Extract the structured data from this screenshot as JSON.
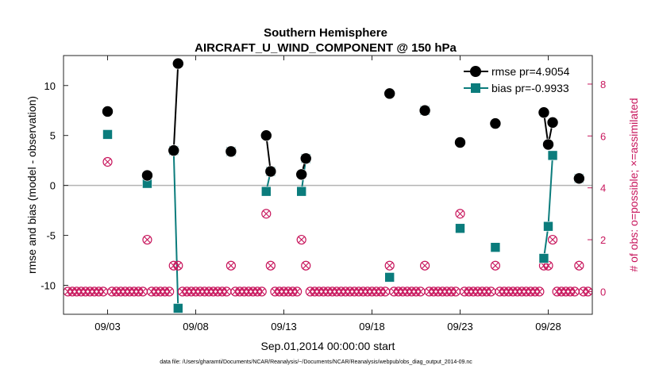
{
  "chart_data": {
    "type": "line",
    "title": "Southern Hemisphere",
    "subtitle": "AIRCRAFT_U_WIND_COMPONENT @ 150 hPa",
    "xlabel": "Sep.01,2014 00:00:00 start",
    "ylabel": "rmse and bias (model - observation)",
    "ylabel_right": "# of obs: o=possible; ×=assimilated",
    "footnote": "data file: /Users/gharamti/Documents/NCAR/Reanalysis/~/Documents/NCAR/Reanalysis/webpub/obs_diag_output_2014-09.nc",
    "xlim": [
      0.5,
      30.5
    ],
    "ylim": [
      -12.9,
      13
    ],
    "ylim_right": [
      -0.875,
      9.1
    ],
    "x_ticks": [
      3,
      8,
      13,
      18,
      23,
      28
    ],
    "x_tick_labels": [
      "09/03",
      "09/08",
      "09/13",
      "09/18",
      "09/23",
      "09/28"
    ],
    "y_ticks": [
      -10,
      -5,
      0,
      5,
      10
    ],
    "y_tick_labels": [
      "-10",
      "-5",
      "0",
      "5",
      "10"
    ],
    "y_right_ticks": [
      0,
      2,
      4,
      6,
      8
    ],
    "y_right_tick_labels": [
      "0",
      "2",
      "4",
      "6",
      "8"
    ],
    "colors": {
      "rmse": "#000000",
      "bias": "#0b7c7c",
      "obs": "#c8175d",
      "zero_line": "#b3b3b3",
      "axes": "#262626"
    },
    "series": [
      {
        "name": "rmse pr=4.9054",
        "color": "#000000",
        "marker": "circle",
        "points": [
          [
            3.0,
            7.4
          ],
          [
            5.25,
            1.0
          ],
          [
            6.75,
            3.5
          ],
          [
            7.0,
            12.2
          ],
          [
            10.0,
            3.4
          ],
          [
            12.0,
            5.0
          ],
          [
            12.25,
            1.4
          ],
          [
            14.0,
            1.1
          ],
          [
            14.25,
            2.7
          ],
          [
            19.0,
            9.2
          ],
          [
            21.0,
            7.5
          ],
          [
            23.0,
            4.3
          ],
          [
            25.0,
            6.2
          ],
          [
            27.75,
            7.3
          ],
          [
            28.0,
            4.1
          ],
          [
            28.25,
            6.3
          ],
          [
            29.75,
            0.7
          ]
        ],
        "segments": [
          [
            2,
            3
          ],
          [
            5,
            6
          ],
          [
            7,
            8
          ],
          [
            13,
            14
          ],
          [
            14,
            15
          ]
        ]
      },
      {
        "name": "bias pr=-0.9933",
        "color": "#0b7c7c",
        "marker": "square",
        "points": [
          [
            3.0,
            5.1
          ],
          [
            5.25,
            0.2
          ],
          [
            6.75,
            3.5
          ],
          [
            7.0,
            -12.3
          ],
          [
            10.0,
            3.4
          ],
          [
            12.0,
            -0.6
          ],
          [
            12.25,
            1.4
          ],
          [
            14.0,
            -0.6
          ],
          [
            14.25,
            2.7
          ],
          [
            19.0,
            -9.2
          ],
          [
            21.0,
            7.5
          ],
          [
            23.0,
            -4.3
          ],
          [
            25.0,
            -6.2
          ],
          [
            27.75,
            -7.3
          ],
          [
            28.0,
            -4.1
          ],
          [
            28.25,
            3.0
          ],
          [
            29.75,
            0.7
          ]
        ],
        "segments": [
          [
            2,
            3
          ],
          [
            5,
            6
          ],
          [
            7,
            8
          ],
          [
            13,
            14
          ],
          [
            14,
            15
          ]
        ]
      },
      {
        "name": "obs possible",
        "color": "#c8175d",
        "marker": "circle-open",
        "axis": "right",
        "x": [
          0.75,
          1.0,
          1.25,
          1.5,
          1.75,
          2.0,
          2.25,
          2.5,
          2.75,
          3.0,
          3.25,
          3.5,
          3.75,
          4.0,
          4.25,
          4.5,
          4.75,
          5.0,
          5.25,
          5.5,
          5.75,
          6.0,
          6.25,
          6.5,
          6.75,
          7.0,
          7.25,
          7.5,
          7.75,
          8.0,
          8.25,
          8.5,
          8.75,
          9.0,
          9.25,
          9.5,
          9.75,
          10.0,
          10.25,
          10.5,
          10.75,
          11.0,
          11.25,
          11.5,
          11.75,
          12.0,
          12.25,
          12.5,
          12.75,
          13.0,
          13.25,
          13.5,
          13.75,
          14.0,
          14.25,
          14.5,
          14.75,
          15.0,
          15.25,
          15.5,
          15.75,
          16.0,
          16.25,
          16.5,
          16.75,
          17.0,
          17.25,
          17.5,
          17.75,
          18.0,
          18.25,
          18.5,
          18.75,
          19.0,
          19.25,
          19.5,
          19.75,
          20.0,
          20.25,
          20.5,
          20.75,
          21.0,
          21.25,
          21.5,
          21.75,
          22.0,
          22.25,
          22.5,
          22.75,
          23.0,
          23.25,
          23.5,
          23.75,
          24.0,
          24.25,
          24.5,
          24.75,
          25.0,
          25.25,
          25.5,
          25.75,
          26.0,
          26.25,
          26.5,
          26.75,
          27.0,
          27.25,
          27.5,
          27.75,
          28.0,
          28.25,
          28.5,
          28.75,
          29.0,
          29.25,
          29.5,
          29.75,
          30.0,
          30.25
        ],
        "values": [
          0,
          0,
          0,
          0,
          0,
          0,
          0,
          0,
          0,
          5,
          0,
          0,
          0,
          0,
          0,
          0,
          0,
          0,
          2,
          0,
          0,
          0,
          0,
          0,
          1,
          1,
          0,
          0,
          0,
          0,
          0,
          0,
          0,
          0,
          0,
          0,
          0,
          1,
          0,
          0,
          0,
          0,
          0,
          0,
          0,
          3,
          1,
          0,
          0,
          0,
          0,
          0,
          0,
          2,
          1,
          0,
          0,
          0,
          0,
          0,
          0,
          0,
          0,
          0,
          0,
          0,
          0,
          0,
          0,
          0,
          0,
          0,
          0,
          1,
          0,
          0,
          0,
          0,
          0,
          0,
          0,
          1,
          0,
          0,
          0,
          0,
          0,
          0,
          0,
          3,
          0,
          0,
          0,
          0,
          0,
          0,
          0,
          1,
          0,
          0,
          0,
          0,
          0,
          0,
          0,
          0,
          0,
          0,
          1,
          1,
          2,
          0,
          0,
          0,
          0,
          0,
          1,
          0,
          0
        ]
      },
      {
        "name": "obs assimilated",
        "color": "#c8175d",
        "marker": "x",
        "axis": "right",
        "note": "same counts as possible (markers overlap)"
      }
    ]
  }
}
